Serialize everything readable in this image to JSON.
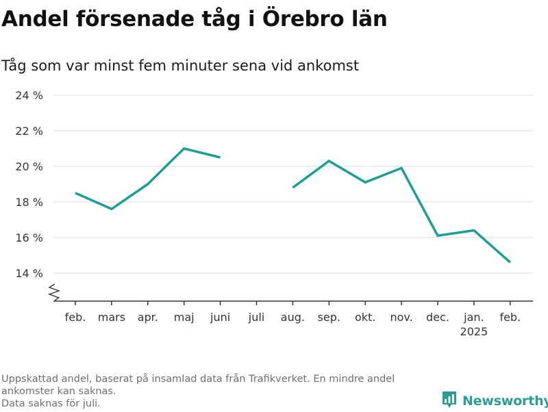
{
  "title": "Andel försenade tåg i Örebro län",
  "subtitle": "Tåg som var minst fem minuter sena vid ankomst",
  "notes": [
    "Uppskattad andel, baserat på insamlad data från Trafikverket. En mindre andel",
    "ankomster kan saknas.",
    "Data saknas för juli."
  ],
  "brand": {
    "name": "Newsworthy",
    "icon": "newsworthy-logo-icon"
  },
  "colors": {
    "line": "#1a9e97",
    "grid": "#d9d9d9",
    "axis": "#333333",
    "text": "#333333"
  },
  "chart_data": {
    "type": "line",
    "categories": [
      "feb.",
      "mars",
      "apr.",
      "maj",
      "juni",
      "juli",
      "aug.",
      "sep.",
      "okt.",
      "nov.",
      "dec.",
      "jan.",
      "feb."
    ],
    "category_sublabels": [
      "",
      "",
      "",
      "",
      "",
      "",
      "",
      "",
      "",
      "",
      "",
      "2025",
      ""
    ],
    "series": [
      {
        "values": [
          18.5,
          17.6,
          19.0,
          21.0,
          20.5,
          null,
          18.8,
          20.3,
          19.1,
          19.9,
          16.1,
          16.4,
          14.6
        ]
      }
    ],
    "yticks": [
      14,
      16,
      18,
      20,
      22,
      24
    ],
    "ytick_labels": [
      "14 %",
      "16 %",
      "18 %",
      "20 %",
      "22 %",
      "24 %"
    ],
    "ylim": [
      14,
      24
    ],
    "y_axis_break": true,
    "grid": true,
    "legend": "none"
  }
}
